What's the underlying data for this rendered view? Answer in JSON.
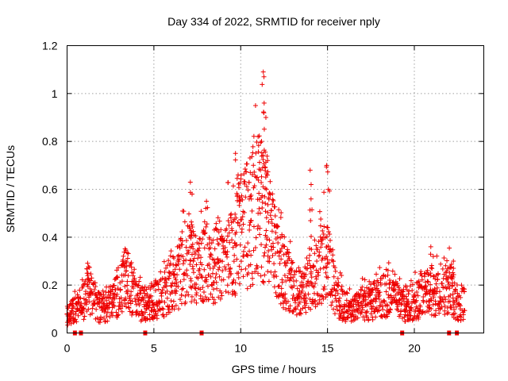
{
  "chart_data": {
    "type": "scatter",
    "title": "Day 334 of 2022, SRMTID for receiver nply",
    "xlabel": "GPS time / hours",
    "ylabel": "SRMTID / TECUs",
    "xlim": [
      0,
      24
    ],
    "ylim": [
      0,
      1.2
    ],
    "x_ticks": [
      0,
      5,
      10,
      15,
      20
    ],
    "x_tick_labels": [
      "0",
      "5",
      "10",
      "15",
      "20"
    ],
    "y_ticks": [
      0,
      0.2,
      0.4,
      0.6,
      0.8,
      1.0,
      1.2
    ],
    "y_tick_labels": [
      "0",
      "0.2",
      "0.4",
      "0.6",
      "0.8",
      "1",
      "1.2"
    ],
    "grid": true,
    "marker": "+",
    "color": "#ee0000",
    "data_gap_markers_x": [
      0.45,
      0.8,
      4.5,
      7.75,
      19.3,
      22.0,
      22.45
    ],
    "envelope": [
      {
        "x": 0.0,
        "y": 0.07
      },
      {
        "x": 0.5,
        "y": 0.09
      },
      {
        "x": 1.0,
        "y": 0.12
      },
      {
        "x": 1.2,
        "y": 0.18
      },
      {
        "x": 1.5,
        "y": 0.12
      },
      {
        "x": 2.0,
        "y": 0.09
      },
      {
        "x": 2.5,
        "y": 0.12
      },
      {
        "x": 3.0,
        "y": 0.15
      },
      {
        "x": 3.4,
        "y": 0.22
      },
      {
        "x": 4.0,
        "y": 0.12
      },
      {
        "x": 4.5,
        "y": 0.1
      },
      {
        "x": 5.0,
        "y": 0.13
      },
      {
        "x": 5.5,
        "y": 0.14
      },
      {
        "x": 6.0,
        "y": 0.2
      },
      {
        "x": 6.5,
        "y": 0.22
      },
      {
        "x": 7.0,
        "y": 0.3
      },
      {
        "x": 7.5,
        "y": 0.22
      },
      {
        "x": 8.0,
        "y": 0.27
      },
      {
        "x": 8.5,
        "y": 0.25
      },
      {
        "x": 9.0,
        "y": 0.28
      },
      {
        "x": 9.5,
        "y": 0.32
      },
      {
        "x": 10.0,
        "y": 0.38
      },
      {
        "x": 10.5,
        "y": 0.42
      },
      {
        "x": 11.0,
        "y": 0.48
      },
      {
        "x": 11.5,
        "y": 0.45
      },
      {
        "x": 12.0,
        "y": 0.3
      },
      {
        "x": 12.5,
        "y": 0.22
      },
      {
        "x": 13.0,
        "y": 0.17
      },
      {
        "x": 13.5,
        "y": 0.15
      },
      {
        "x": 14.0,
        "y": 0.2
      },
      {
        "x": 14.5,
        "y": 0.26
      },
      {
        "x": 15.0,
        "y": 0.3
      },
      {
        "x": 15.5,
        "y": 0.14
      },
      {
        "x": 16.0,
        "y": 0.1
      },
      {
        "x": 16.5,
        "y": 0.09
      },
      {
        "x": 17.0,
        "y": 0.11
      },
      {
        "x": 17.5,
        "y": 0.12
      },
      {
        "x": 18.0,
        "y": 0.13
      },
      {
        "x": 18.5,
        "y": 0.15
      },
      {
        "x": 19.0,
        "y": 0.12
      },
      {
        "x": 19.5,
        "y": 0.1
      },
      {
        "x": 20.0,
        "y": 0.12
      },
      {
        "x": 20.5,
        "y": 0.14
      },
      {
        "x": 21.0,
        "y": 0.16
      },
      {
        "x": 21.5,
        "y": 0.15
      },
      {
        "x": 22.0,
        "y": 0.18
      },
      {
        "x": 22.5,
        "y": 0.11
      },
      {
        "x": 22.9,
        "y": 0.12
      }
    ],
    "spikes": [
      {
        "x": 1.2,
        "y": 0.25
      },
      {
        "x": 3.35,
        "y": 0.28
      },
      {
        "x": 7.1,
        "y": 0.63
      },
      {
        "x": 7.2,
        "y": 0.58
      },
      {
        "x": 9.7,
        "y": 0.75
      },
      {
        "x": 9.85,
        "y": 0.66
      },
      {
        "x": 10.55,
        "y": 0.67
      },
      {
        "x": 11.0,
        "y": 0.82
      },
      {
        "x": 11.2,
        "y": 0.8
      },
      {
        "x": 11.3,
        "y": 1.09
      },
      {
        "x": 11.35,
        "y": 0.96
      },
      {
        "x": 11.45,
        "y": 0.9
      },
      {
        "x": 11.55,
        "y": 0.72
      },
      {
        "x": 14.0,
        "y": 0.68
      },
      {
        "x": 14.05,
        "y": 0.56
      },
      {
        "x": 14.95,
        "y": 0.7
      },
      {
        "x": 15.05,
        "y": 0.6
      },
      {
        "x": 20.95,
        "y": 0.36
      },
      {
        "x": 22.25,
        "y": 0.3
      }
    ]
  }
}
